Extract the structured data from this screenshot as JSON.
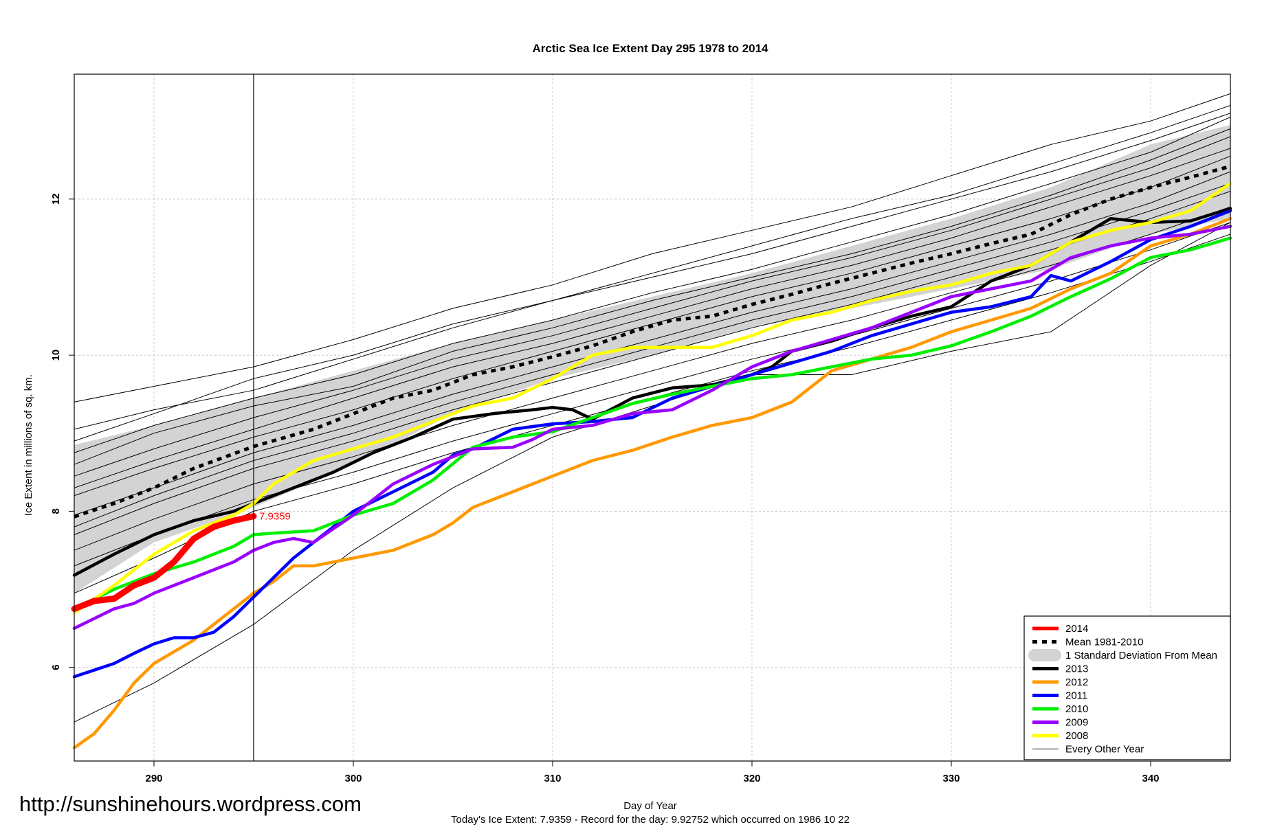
{
  "watermark": "http://sunshinehours.wordpress.com",
  "footer_note": "Today's Ice Extent: 7.9359  - Record for the day: 9.92752 which occurred on 1986 10 22",
  "colors": {
    "y2014": "#ff0000",
    "y2013": "#000000",
    "y2012": "#ff9900",
    "y2011": "#0000ff",
    "y2010": "#00ee00",
    "y2009": "#9900ff",
    "y2008": "#ffff00",
    "other": "#000000",
    "band": "#d3d3d3",
    "grid": "#c8c8c8"
  },
  "chart_data": {
    "type": "line",
    "title": "Arctic Sea Ice Extent Day 295 1978 to 2014",
    "xlabel": "Day of Year",
    "ylabel": "Ice Extent in millions of sq. km.",
    "xlim": [
      286,
      344
    ],
    "ylim": [
      4.8,
      13.6
    ],
    "x_ticks": [
      290,
      300,
      310,
      320,
      330,
      340
    ],
    "y_ticks": [
      6,
      8,
      10,
      12
    ],
    "x_tick_labels": [
      "290",
      "300",
      "310",
      "320",
      "330",
      "340"
    ],
    "y_tick_labels": [
      "6",
      "8",
      "10",
      "12"
    ],
    "grid": true,
    "legend_position": "bottom-right",
    "reference_line_x": 295,
    "annotation": {
      "text": "7.9359",
      "x": 295,
      "y": 7.9359
    },
    "legend": [
      {
        "label": "2014",
        "key": "y2014",
        "style": "thick"
      },
      {
        "label": "Mean 1981-2010",
        "key": "mean",
        "style": "dotted"
      },
      {
        "label": "1 Standard Deviation From Mean",
        "key": "band",
        "style": "band"
      },
      {
        "label": "2013",
        "key": "y2013",
        "style": "thick"
      },
      {
        "label": "2012",
        "key": "y2012",
        "style": "thick"
      },
      {
        "label": "2011",
        "key": "y2011",
        "style": "thick"
      },
      {
        "label": "2010",
        "key": "y2010",
        "style": "thick"
      },
      {
        "label": "2009",
        "key": "y2009",
        "style": "thick"
      },
      {
        "label": "2008",
        "key": "y2008",
        "style": "thick"
      },
      {
        "label": "Every Other Year",
        "key": "other",
        "style": "thin"
      }
    ],
    "band": {
      "x": [
        286,
        290,
        295,
        300,
        305,
        310,
        315,
        320,
        325,
        330,
        335,
        340,
        344
      ],
      "lower": [
        6.95,
        7.6,
        8.05,
        8.6,
        9.25,
        9.7,
        10.0,
        10.35,
        10.6,
        10.85,
        11.1,
        11.55,
        11.75
      ],
      "upper": [
        8.85,
        9.1,
        9.45,
        9.8,
        10.15,
        10.45,
        10.75,
        11.05,
        11.4,
        11.75,
        12.15,
        12.7,
        12.95
      ]
    },
    "series": [
      {
        "name": "Mean 1981-2010",
        "key": "mean",
        "x": [
          286,
          288,
          290,
          292,
          295,
          298,
          300,
          302,
          304,
          306,
          308,
          310,
          312,
          314,
          316,
          318,
          320,
          322,
          324,
          326,
          328,
          330,
          332,
          334,
          336,
          338,
          340,
          342,
          344
        ],
        "y": [
          7.93,
          8.1,
          8.3,
          8.55,
          8.83,
          9.05,
          9.25,
          9.45,
          9.55,
          9.75,
          9.85,
          9.98,
          10.12,
          10.3,
          10.45,
          10.5,
          10.65,
          10.78,
          10.92,
          11.05,
          11.18,
          11.3,
          11.43,
          11.55,
          11.8,
          12.0,
          12.15,
          12.28,
          12.42
        ]
      },
      {
        "name": "2013",
        "key": "y2013",
        "x": [
          286,
          288,
          290,
          292,
          294,
          295,
          297,
          299,
          301,
          303,
          305,
          307,
          309,
          310,
          311,
          312,
          314,
          316,
          318,
          320,
          321,
          322,
          324,
          326,
          328,
          330,
          332,
          334,
          336,
          338,
          340,
          342,
          344
        ],
        "y": [
          7.18,
          7.45,
          7.7,
          7.88,
          8.0,
          8.1,
          8.3,
          8.5,
          8.75,
          8.95,
          9.18,
          9.25,
          9.3,
          9.33,
          9.3,
          9.18,
          9.45,
          9.58,
          9.62,
          9.75,
          9.85,
          10.05,
          10.18,
          10.35,
          10.5,
          10.62,
          10.95,
          11.15,
          11.45,
          11.75,
          11.7,
          11.72,
          11.88
        ]
      },
      {
        "name": "2012",
        "key": "y2012",
        "x": [
          286,
          287,
          288,
          289,
          290,
          291,
          292,
          293,
          294,
          295,
          296,
          297,
          298,
          299,
          300,
          302,
          304,
          305,
          306,
          308,
          310,
          312,
          314,
          316,
          318,
          320,
          322,
          324,
          326,
          328,
          330,
          332,
          334,
          336,
          338,
          340,
          342,
          344
        ],
        "y": [
          4.97,
          5.15,
          5.45,
          5.8,
          6.05,
          6.2,
          6.35,
          6.55,
          6.75,
          6.95,
          7.1,
          7.3,
          7.3,
          7.35,
          7.4,
          7.5,
          7.7,
          7.85,
          8.05,
          8.25,
          8.45,
          8.65,
          8.78,
          8.95,
          9.1,
          9.2,
          9.4,
          9.8,
          9.95,
          10.1,
          10.3,
          10.45,
          10.6,
          10.85,
          11.05,
          11.4,
          11.55,
          11.75
        ]
      },
      {
        "name": "2011",
        "key": "y2011",
        "x": [
          286,
          288,
          289,
          290,
          291,
          292,
          293,
          294,
          295,
          296,
          297,
          298,
          299,
          300,
          302,
          304,
          305,
          306,
          308,
          310,
          312,
          314,
          316,
          318,
          320,
          322,
          324,
          326,
          328,
          330,
          332,
          334,
          335,
          336,
          338,
          340,
          342,
          344
        ],
        "y": [
          5.88,
          6.05,
          6.18,
          6.3,
          6.38,
          6.38,
          6.45,
          6.65,
          6.9,
          7.15,
          7.4,
          7.6,
          7.8,
          8.0,
          8.25,
          8.5,
          8.72,
          8.8,
          9.05,
          9.12,
          9.15,
          9.2,
          9.45,
          9.6,
          9.75,
          9.9,
          10.05,
          10.25,
          10.4,
          10.55,
          10.62,
          10.75,
          11.02,
          10.95,
          11.2,
          11.48,
          11.65,
          11.85
        ]
      },
      {
        "name": "2010",
        "key": "y2010",
        "x": [
          286,
          288,
          290,
          292,
          294,
          295,
          296,
          298,
          300,
          302,
          304,
          306,
          308,
          310,
          312,
          314,
          316,
          318,
          320,
          322,
          324,
          326,
          328,
          330,
          332,
          334,
          336,
          338,
          340,
          342,
          344
        ],
        "y": [
          6.75,
          7.0,
          7.2,
          7.35,
          7.55,
          7.7,
          7.72,
          7.75,
          7.95,
          8.1,
          8.4,
          8.82,
          8.95,
          9.02,
          9.2,
          9.38,
          9.5,
          9.6,
          9.7,
          9.75,
          9.85,
          9.95,
          10.0,
          10.12,
          10.3,
          10.5,
          10.75,
          10.98,
          11.25,
          11.35,
          11.5
        ]
      },
      {
        "name": "2009",
        "key": "y2009",
        "x": [
          286,
          288,
          289,
          290,
          292,
          294,
          295,
          296,
          297,
          298,
          300,
          302,
          304,
          306,
          308,
          309,
          310,
          312,
          314,
          316,
          318,
          320,
          322,
          324,
          326,
          328,
          330,
          332,
          334,
          336,
          338,
          340,
          342,
          344
        ],
        "y": [
          6.5,
          6.75,
          6.82,
          6.95,
          7.15,
          7.35,
          7.5,
          7.6,
          7.65,
          7.6,
          7.95,
          8.35,
          8.6,
          8.8,
          8.82,
          8.92,
          9.05,
          9.1,
          9.25,
          9.3,
          9.55,
          9.85,
          10.05,
          10.2,
          10.35,
          10.55,
          10.75,
          10.85,
          10.95,
          11.25,
          11.4,
          11.5,
          11.55,
          11.65
        ]
      },
      {
        "name": "2008",
        "key": "y2008",
        "x": [
          286,
          288,
          290,
          292,
          294,
          295,
          296,
          298,
          300,
          302,
          304,
          306,
          308,
          310,
          312,
          314,
          316,
          318,
          320,
          322,
          324,
          326,
          328,
          330,
          332,
          334,
          336,
          338,
          340,
          342,
          344
        ],
        "y": [
          6.7,
          7.05,
          7.45,
          7.75,
          7.95,
          8.1,
          8.35,
          8.65,
          8.8,
          8.95,
          9.15,
          9.35,
          9.45,
          9.7,
          10.0,
          10.1,
          10.1,
          10.1,
          10.25,
          10.45,
          10.55,
          10.7,
          10.82,
          10.9,
          11.05,
          11.15,
          11.45,
          11.6,
          11.7,
          11.85,
          12.2
        ]
      },
      {
        "name": "2014",
        "key": "y2014",
        "x": [
          286,
          287,
          288,
          289,
          290,
          291,
          292,
          293,
          294,
          295
        ],
        "y": [
          6.75,
          6.85,
          6.88,
          7.05,
          7.15,
          7.35,
          7.65,
          7.8,
          7.88,
          7.9359
        ]
      }
    ],
    "other_years": [
      {
        "x": [
          286,
          290,
          295,
          300,
          305,
          310,
          315,
          320,
          325,
          330,
          335,
          340,
          344
        ],
        "y": [
          9.4,
          9.6,
          9.85,
          10.2,
          10.6,
          10.9,
          11.3,
          11.6,
          11.9,
          12.3,
          12.7,
          13.0,
          13.35
        ]
      },
      {
        "x": [
          286,
          290,
          295,
          300,
          305,
          310,
          315,
          320,
          325,
          330,
          335,
          340,
          344
        ],
        "y": [
          9.05,
          9.3,
          9.55,
          9.95,
          10.35,
          10.7,
          11.05,
          11.4,
          11.75,
          12.05,
          12.45,
          12.85,
          13.2
        ]
      },
      {
        "x": [
          286,
          290,
          295,
          300,
          305,
          310,
          315,
          320,
          325,
          330,
          335,
          340,
          344
        ],
        "y": [
          8.75,
          9.1,
          9.45,
          9.75,
          10.15,
          10.45,
          10.8,
          11.1,
          11.45,
          11.8,
          12.2,
          12.6,
          13.05
        ]
      },
      {
        "x": [
          286,
          290,
          295,
          300,
          305,
          310,
          315,
          320,
          325,
          330,
          335,
          340,
          344
        ],
        "y": [
          8.45,
          8.8,
          9.2,
          9.55,
          9.95,
          10.25,
          10.6,
          10.95,
          11.25,
          11.6,
          12.0,
          12.4,
          12.8
        ]
      },
      {
        "x": [
          286,
          290,
          295,
          300,
          305,
          310,
          315,
          320,
          325,
          330,
          335,
          340,
          344
        ],
        "y": [
          8.2,
          8.55,
          8.95,
          9.3,
          9.7,
          10.05,
          10.4,
          10.75,
          11.05,
          11.4,
          11.75,
          12.15,
          12.55
        ]
      },
      {
        "x": [
          286,
          290,
          295,
          300,
          305,
          310,
          315,
          320,
          325,
          330,
          335,
          340,
          344
        ],
        "y": [
          7.95,
          8.3,
          8.75,
          9.1,
          9.5,
          9.85,
          10.2,
          10.55,
          10.85,
          11.2,
          11.55,
          11.95,
          12.35
        ]
      },
      {
        "x": [
          286,
          290,
          295,
          300,
          305,
          310,
          315,
          320,
          325,
          330,
          335,
          340,
          344
        ],
        "y": [
          7.7,
          8.1,
          8.55,
          8.9,
          9.3,
          9.65,
          10.0,
          10.35,
          10.65,
          11.0,
          11.35,
          11.75,
          12.1
        ]
      },
      {
        "x": [
          286,
          290,
          295,
          300,
          305,
          310,
          315,
          320,
          325,
          330,
          335,
          340,
          344
        ],
        "y": [
          7.5,
          7.9,
          8.35,
          8.7,
          9.1,
          9.45,
          9.8,
          10.15,
          10.45,
          10.8,
          11.15,
          11.55,
          11.9
        ]
      },
      {
        "x": [
          286,
          290,
          295,
          300,
          305,
          310,
          315,
          320,
          325,
          330,
          335,
          340,
          344
        ],
        "y": [
          7.3,
          7.7,
          8.15,
          8.5,
          8.9,
          9.25,
          9.6,
          9.95,
          10.25,
          10.6,
          10.95,
          11.35,
          11.7
        ]
      },
      {
        "x": [
          286,
          290,
          295,
          300,
          305,
          310,
          315,
          320,
          325,
          330,
          335,
          340,
          344
        ],
        "y": [
          8.6,
          9.0,
          9.35,
          9.6,
          10.05,
          10.35,
          10.7,
          11.0,
          11.3,
          11.65,
          12.05,
          12.5,
          12.9
        ]
      },
      {
        "x": [
          286,
          290,
          295,
          300,
          305,
          310,
          315,
          320,
          325,
          330,
          335,
          340,
          344
        ],
        "y": [
          8.3,
          8.65,
          9.05,
          9.45,
          9.85,
          10.15,
          10.5,
          10.85,
          11.15,
          11.5,
          11.9,
          12.3,
          12.65
        ]
      },
      {
        "x": [
          286,
          290,
          295,
          300,
          305,
          310,
          315,
          320,
          325,
          330,
          335,
          340,
          344
        ],
        "y": [
          7.8,
          8.2,
          8.65,
          9.0,
          9.4,
          9.75,
          10.1,
          10.45,
          10.75,
          11.1,
          11.45,
          11.85,
          12.2
        ]
      },
      {
        "x": [
          286,
          290,
          295,
          300,
          305,
          310,
          315,
          320,
          325,
          330,
          335,
          340,
          344
        ],
        "y": [
          5.3,
          5.8,
          6.55,
          7.5,
          8.3,
          8.95,
          9.35,
          9.75,
          9.75,
          10.05,
          10.3,
          11.15,
          11.7
        ]
      },
      {
        "x": [
          286,
          290,
          295,
          300,
          305,
          310,
          315,
          320,
          325,
          330,
          335,
          340,
          344
        ],
        "y": [
          6.95,
          7.4,
          8.0,
          8.35,
          8.75,
          9.1,
          9.45,
          9.8,
          10.1,
          10.45,
          10.8,
          11.2,
          11.55
        ]
      },
      {
        "x": [
          286,
          290,
          295,
          300,
          305,
          310,
          315,
          320,
          325,
          330,
          335,
          340,
          344
        ],
        "y": [
          8.9,
          9.25,
          9.7,
          10.0,
          10.4,
          10.7,
          11.0,
          11.3,
          11.65,
          12.0,
          12.35,
          12.75,
          13.1
        ]
      }
    ]
  }
}
